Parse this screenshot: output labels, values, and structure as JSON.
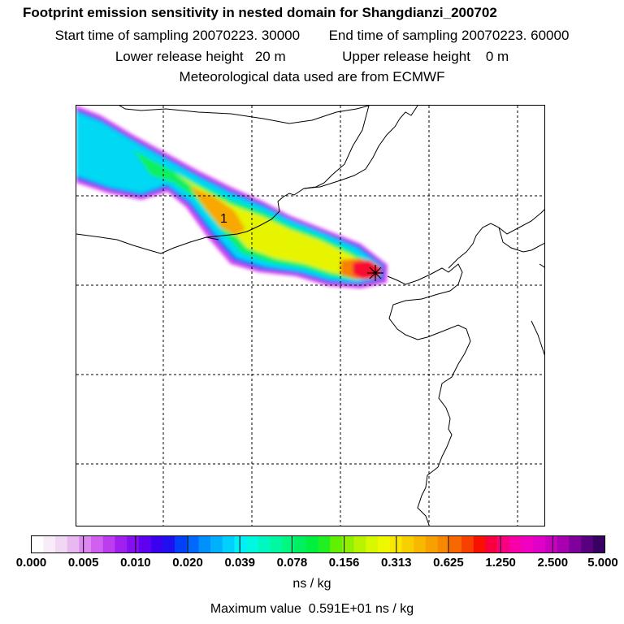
{
  "title": "Footprint emission sensitivity in nested domain for Shangdianzi_200702",
  "sampling": {
    "start_label": "Start time of sampling",
    "start_value": "20070223. 30000",
    "end_label": "End time of sampling",
    "end_value": "20070223. 60000"
  },
  "release": {
    "lower_label": "Lower release height",
    "lower_value": "20 m",
    "upper_label": "Upper release height",
    "upper_value": "0 m"
  },
  "met_note": "Meteorological data used are from ECMWF",
  "map": {
    "contour_label": "1",
    "station_marker": "station-star-icon"
  },
  "colorbar": {
    "ticks": [
      "0.000",
      "0.005",
      "0.010",
      "0.020",
      "0.039",
      "0.078",
      "0.156",
      "0.313",
      "0.625",
      "1.250",
      "2.500",
      "5.000"
    ],
    "colors": [
      "#ffffff",
      "#f8ecf8",
      "#f0d8f4",
      "#e8b8f0",
      "#dc88f0",
      "#d060f0",
      "#bc3cf0",
      "#a020f0",
      "#8410f0",
      "#6000f0",
      "#3c00f0",
      "#2010f0",
      "#0040f8",
      "#0068fc",
      "#0090fc",
      "#00b0fc",
      "#00d0fc",
      "#00f0f8",
      "#00f8e0",
      "#00f8c0",
      "#00f8a0",
      "#00f880",
      "#00f060",
      "#00f040",
      "#20f020",
      "#60f000",
      "#90f000",
      "#b8f400",
      "#d8f800",
      "#f0f800",
      "#f8e800",
      "#f8d000",
      "#f8b800",
      "#f8a000",
      "#f88800",
      "#f86800",
      "#f84000",
      "#f81000",
      "#f80040",
      "#f80080",
      "#f800a8",
      "#f000c0",
      "#e000c8",
      "#c800c0",
      "#a800b0",
      "#80009c",
      "#580080",
      "#380060"
    ],
    "unit": "ns / kg"
  },
  "max_value_text": "Maximum value  0.591E+01 ns / kg"
}
